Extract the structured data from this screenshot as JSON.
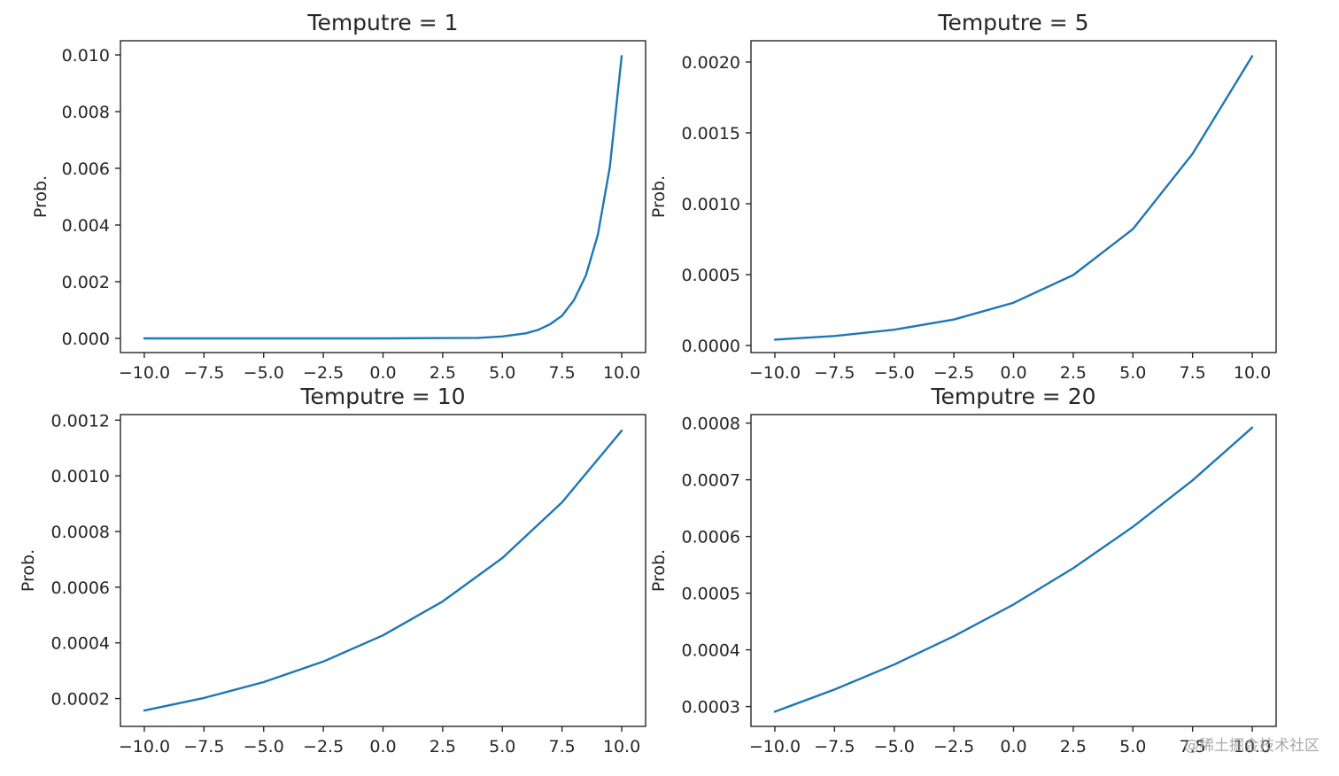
{
  "watermark": "@稀土掘金技术社区",
  "colors": {
    "line": "#1f77b4",
    "axes": "#262626",
    "background": "#ffffff"
  },
  "chart_data": [
    {
      "type": "line",
      "title": "Temputre = 1",
      "ylabel": "Prob.",
      "xlabel": "",
      "xlim": [
        -11.0,
        11.0
      ],
      "ylim": [
        -0.0005,
        0.0105
      ],
      "xticks": [
        -10.0,
        -7.5,
        -5.0,
        -2.5,
        0.0,
        2.5,
        5.0,
        7.5,
        10.0
      ],
      "xtick_labels": [
        "−10.0",
        "−7.5",
        "−5.0",
        "−2.5",
        "0.0",
        "2.5",
        "5.0",
        "7.5",
        "10.0"
      ],
      "yticks": [
        0.0,
        0.002,
        0.004,
        0.006,
        0.008,
        0.01
      ],
      "ytick_labels": [
        "0.000",
        "0.002",
        "0.004",
        "0.006",
        "0.008",
        "0.010"
      ],
      "grid": false,
      "series": [
        {
          "x": [
            -10,
            -8,
            -6,
            -4,
            -2,
            0,
            2,
            4,
            5,
            6,
            6.5,
            7,
            7.5,
            8,
            8.5,
            9,
            9.5,
            10
          ],
          "y": [
            0.0,
            0.0,
            0.0,
            0.0,
            0.0,
            0.0,
            1e-05,
            2e-05,
            7e-05,
            0.00018,
            0.0003,
            0.0005,
            0.0008,
            0.00135,
            0.00222,
            0.00366,
            0.00604,
            0.00996
          ]
        }
      ]
    },
    {
      "type": "line",
      "title": "Temputre = 5",
      "ylabel": "Prob.",
      "xlabel": "",
      "xlim": [
        -11.0,
        11.0
      ],
      "ylim": [
        -5e-05,
        0.00215
      ],
      "xticks": [
        -10.0,
        -7.5,
        -5.0,
        -2.5,
        0.0,
        2.5,
        5.0,
        7.5,
        10.0
      ],
      "xtick_labels": [
        "−10.0",
        "−7.5",
        "−5.0",
        "−2.5",
        "0.0",
        "2.5",
        "5.0",
        "7.5",
        "10.0"
      ],
      "yticks": [
        0.0,
        0.0005,
        0.001,
        0.0015,
        0.002
      ],
      "ytick_labels": [
        "0.0000",
        "0.0005",
        "0.0010",
        "0.0015",
        "0.0020"
      ],
      "grid": false,
      "series": [
        {
          "x": [
            -10,
            -7.5,
            -5,
            -2.5,
            0,
            2.5,
            5,
            7.5,
            10
          ],
          "y": [
            4.1e-05,
            6.7e-05,
            0.000111,
            0.000183,
            0.000302,
            0.000497,
            0.000821,
            0.001353,
            0.002041
          ]
        }
      ]
    },
    {
      "type": "line",
      "title": "Temputre = 10",
      "ylabel": "Prob.",
      "xlabel": "",
      "xlim": [
        -11.0,
        11.0
      ],
      "ylim": [
        0.0001,
        0.00122
      ],
      "xticks": [
        -10.0,
        -7.5,
        -5.0,
        -2.5,
        0.0,
        2.5,
        5.0,
        7.5,
        10.0
      ],
      "xtick_labels": [
        "−10.0",
        "−7.5",
        "−5.0",
        "−2.5",
        "0.0",
        "2.5",
        "5.0",
        "7.5",
        "10.0"
      ],
      "yticks": [
        0.0002,
        0.0004,
        0.0006,
        0.0008,
        0.001,
        0.0012
      ],
      "ytick_labels": [
        "0.0002",
        "0.0004",
        "0.0006",
        "0.0008",
        "0.0010",
        "0.0012"
      ],
      "grid": false,
      "series": [
        {
          "x": [
            -10,
            -7.5,
            -5,
            -2.5,
            0,
            2.5,
            5,
            7.5,
            10
          ],
          "y": [
            0.000157,
            0.000202,
            0.000259,
            0.000333,
            0.000427,
            0.000549,
            0.000705,
            0.000905,
            0.001162
          ]
        }
      ]
    },
    {
      "type": "line",
      "title": "Temputre = 20",
      "ylabel": "Prob.",
      "xlabel": "",
      "xlim": [
        -11.0,
        11.0
      ],
      "ylim": [
        0.000265,
        0.000815
      ],
      "xticks": [
        -10.0,
        -7.5,
        -5.0,
        -2.5,
        0.0,
        2.5,
        5.0,
        7.5,
        10.0
      ],
      "xtick_labels": [
        "−10.0",
        "−7.5",
        "−5.0",
        "−2.5",
        "0.0",
        "2.5",
        "5.0",
        "7.5",
        "10.0"
      ],
      "yticks": [
        0.0003,
        0.0004,
        0.0005,
        0.0006,
        0.0007,
        0.0008
      ],
      "ytick_labels": [
        "0.0003",
        "0.0004",
        "0.0005",
        "0.0006",
        "0.0007",
        "0.0008"
      ],
      "grid": false,
      "series": [
        {
          "x": [
            -10,
            -7.5,
            -5,
            -2.5,
            0,
            2.5,
            5,
            7.5,
            10
          ],
          "y": [
            0.000291,
            0.00033,
            0.000374,
            0.000424,
            0.00048,
            0.000544,
            0.000617,
            0.000699,
            0.000792
          ]
        }
      ]
    }
  ]
}
